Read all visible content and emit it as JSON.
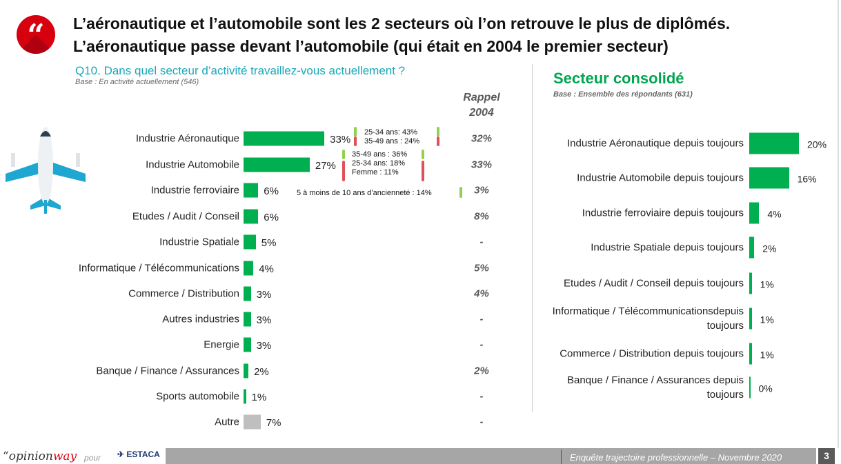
{
  "header": {
    "icon": "quote-icon",
    "title_line1": "L’aéronautique et l’automobile sont les 2 secteurs où l’on retrouve le plus de diplômés.",
    "title_line2": "L’aéronautique passe devant l’automobile (qui était en 2004 le premier secteur)"
  },
  "left": {
    "question": "Q10. Dans quel secteur d’activité travaillez-vous actuellement ?",
    "base": "Base : En activité  actuellement (546)",
    "rappel_line1": "Rappel",
    "rappel_line2": "2004"
  },
  "right": {
    "title": "Secteur consolidé",
    "base": "Base : Ensemble des répondants (631)"
  },
  "colors": {
    "bar": "#00b050",
    "other": "#bfbfbf",
    "up": "#92d050",
    "down": "#e0505a"
  },
  "callouts": {
    "aero": [
      "25-34 ans: 43%",
      "35-49 ans : 24%"
    ],
    "auto": [
      "35-49 ans : 36%",
      "25-34 ans: 18%",
      "Femme : 11%"
    ],
    "ferro": [
      "5 à moins de 10 ans d’ancienneté : 14%"
    ]
  },
  "chart_data": [
    {
      "type": "bar",
      "title": "Q10. Dans quel secteur d’activité travaillez-vous actuellement ?",
      "categories": [
        "Industrie Aéronautique",
        "Industrie Automobile",
        "Industrie ferroviaire",
        "Etudes / Audit / Conseil",
        "Industrie Spatiale",
        "Informatique / Télécommunications",
        "Commerce / Distribution",
        "Autres industries",
        "Energie",
        "Banque / Finance / Assurances",
        "Sports automobile",
        "Autre"
      ],
      "values": [
        33,
        27,
        6,
        6,
        5,
        4,
        3,
        3,
        3,
        2,
        1,
        7
      ],
      "labels": [
        "33%",
        "27%",
        "6%",
        "6%",
        "5%",
        "4%",
        "3%",
        "3%",
        "3%",
        "2%",
        "1%",
        "7%"
      ],
      "rappel_2004": [
        "32%",
        "33%",
        "3%",
        "8%",
        "-",
        "5%",
        "4%",
        "-",
        "-",
        "2%",
        "-",
        "-"
      ]
    },
    {
      "type": "bar",
      "title": "Secteur consolidé",
      "categories": [
        "Industrie Aéronautique depuis toujours",
        "Industrie Automobile depuis toujours",
        "Industrie ferroviaire depuis toujours",
        "Industrie Spatiale depuis toujours",
        "Etudes / Audit / Conseil depuis toujours",
        "Informatique / Télécommunicationsdepuis toujours",
        "Commerce / Distribution depuis toujours",
        "Banque / Finance / Assurances depuis toujours"
      ],
      "values": [
        20,
        16,
        4,
        2,
        1,
        1,
        1,
        0
      ],
      "labels": [
        "20%",
        "16%",
        "4%",
        "2%",
        "1%",
        "1%",
        "1%",
        "0%"
      ]
    }
  ],
  "footer": {
    "brand_prefix": "“opinion",
    "brand_suffix": "way",
    "pour": "pour",
    "partner": "ESTACA",
    "text": "Enquête trajectoire professionnelle – Novembre 2020",
    "page": "3"
  }
}
